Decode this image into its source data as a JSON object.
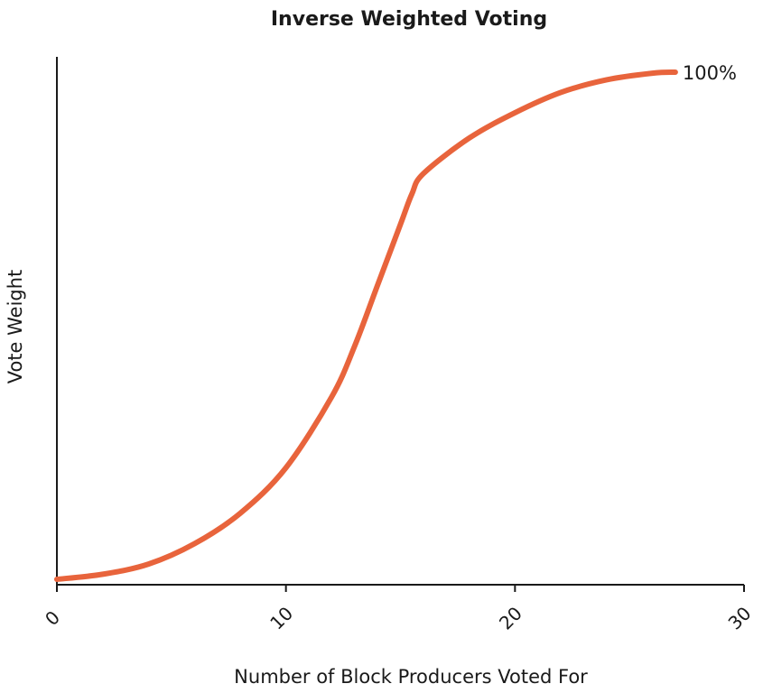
{
  "chart_data": {
    "type": "line",
    "title": "Inverse Weighted Voting",
    "xlabel": "Number of Block Producers Voted For",
    "ylabel": "Vote Weight",
    "xlim": [
      0,
      30
    ],
    "ylim": [
      0,
      100
    ],
    "x_ticks": [
      "0",
      "10",
      "20",
      "30"
    ],
    "x_tick_values": [
      0,
      10,
      20,
      30
    ],
    "grid": false,
    "series": [
      {
        "color": "#E8643C",
        "x": [
          0,
          2,
          4,
          6,
          8,
          10,
          12,
          13,
          14,
          15,
          15.5,
          16,
          18,
          20,
          22,
          24,
          26,
          27
        ],
        "y": [
          0,
          1,
          3,
          7,
          13,
          22,
          36,
          46,
          58,
          70,
          76,
          80,
          87,
          92,
          96,
          98.5,
          99.8,
          100
        ]
      }
    ],
    "annotations": [
      {
        "text": "100%",
        "x": 27,
        "y": 100
      }
    ]
  }
}
